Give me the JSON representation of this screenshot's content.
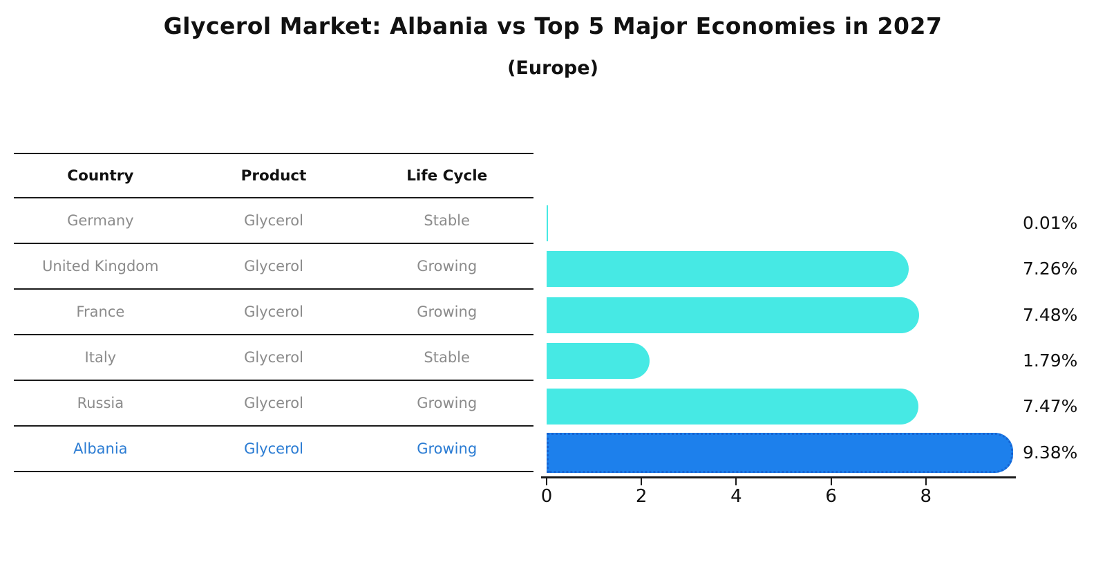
{
  "title": "Glycerol Market: Albania vs Top 5 Major Economies in 2027",
  "subtitle": "(Europe)",
  "table": {
    "headers": [
      "Country",
      "Product",
      "Life Cycle"
    ],
    "rows": [
      {
        "country": "Germany",
        "product": "Glycerol",
        "life_cycle": "Stable",
        "highlighted": false
      },
      {
        "country": "United Kingdom",
        "product": "Glycerol",
        "life_cycle": "Growing",
        "highlighted": false
      },
      {
        "country": "France",
        "product": "Glycerol",
        "life_cycle": "Growing",
        "highlighted": false
      },
      {
        "country": "Italy",
        "product": "Glycerol",
        "life_cycle": "Stable",
        "highlighted": false
      },
      {
        "country": "Russia",
        "product": "Glycerol",
        "life_cycle": "Growing",
        "highlighted": false
      },
      {
        "country": "Albania",
        "product": "Glycerol",
        "life_cycle": "Growing",
        "highlighted": true
      }
    ]
  },
  "chart_data": {
    "type": "bar",
    "orientation": "horizontal",
    "title": "Glycerol Market: Albania vs Top 5 Major Economies in 2027",
    "subtitle": "(Europe)",
    "categories": [
      "Germany",
      "United Kingdom",
      "France",
      "Italy",
      "Russia",
      "Albania"
    ],
    "values": [
      0.01,
      7.26,
      7.48,
      1.79,
      7.47,
      9.38
    ],
    "value_labels": [
      "0.01%",
      "7.26%",
      "7.48%",
      "1.79%",
      "7.47%",
      "9.38%"
    ],
    "unit": "%",
    "xlabel": "",
    "ylabel": "",
    "xlim": [
      0,
      9.9
    ],
    "xticks": [
      0,
      2,
      4,
      6,
      8
    ],
    "grid": false,
    "legend": "none",
    "highlight_index": 5,
    "colors": {
      "bar": "#46e9e4",
      "highlight_bar": "#1d80ec",
      "highlight_edge": "#1663d1",
      "axis": "#1a1a1a",
      "label_text": "#111111",
      "table_text": "#8b8b8b",
      "highlight_text": "#2b7cd3"
    }
  }
}
